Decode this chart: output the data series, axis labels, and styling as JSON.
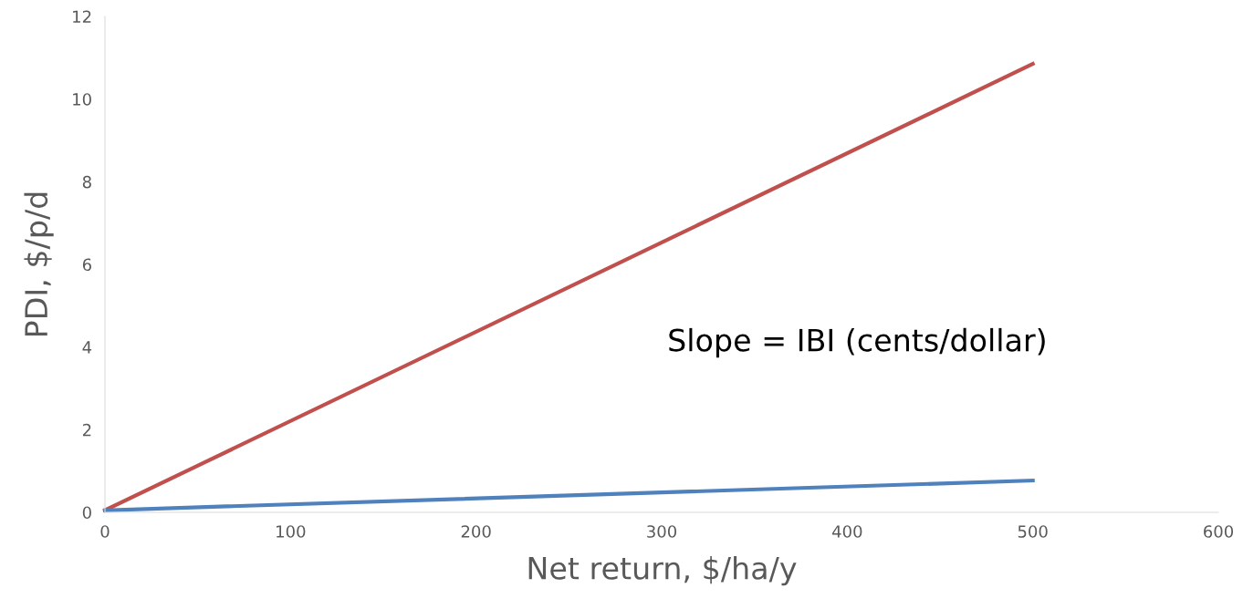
{
  "chart_data": {
    "type": "line",
    "xlabel": "Net return, $/ha/y",
    "ylabel": "PDI, $/p/d",
    "x": [
      0,
      500
    ],
    "series": [
      {
        "color": "#c0504d",
        "values": [
          0.05,
          10.85
        ]
      },
      {
        "color": "#4f81bd",
        "values": [
          0.05,
          0.77
        ]
      }
    ],
    "xlim": [
      0,
      600
    ],
    "xticks": [
      0,
      100,
      200,
      300,
      400,
      500,
      600
    ],
    "ylim": [
      0,
      12
    ],
    "yticks": [
      0,
      2,
      4,
      6,
      8,
      10,
      12
    ],
    "annotations": [
      "Slope = IBI (cents/dollar)"
    ],
    "grid": false,
    "legend": false,
    "marker": "none",
    "line_style": "solid"
  }
}
